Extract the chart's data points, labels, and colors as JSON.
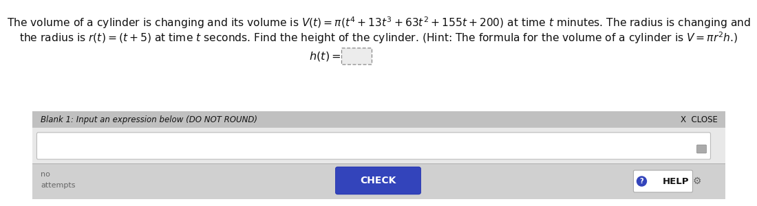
{
  "bg_color": "#f0f0f0",
  "white_color": "#ffffff",
  "gray_bar_color": "#c0c0c0",
  "input_area_color": "#e8e8e8",
  "bottom_bar_color": "#d0d0d0",
  "check_btn_color": "#3344bb",
  "help_btn_color": "#3344bb",
  "line1": "The volume of a cylinder is changing and its volume is $V(t) = \\pi(t^4 + 13t^3 + 63t^2 + 155t + 200)$ at time $t$ minutes. The radius is changing and",
  "line2": "the radius is $r(t) = (t+5)$ at time $t$ seconds. Find the height of the cylinder. (Hint: The formula for the volume of a cylinder is $V = \\pi r^2 h$.)",
  "blank1_label": "Blank 1: Input an expression below (DO NOT ROUND)",
  "close_label": "X  CLOSE",
  "check_label": "CHECK",
  "help_label": "? HELP",
  "attempts_label": "attempts",
  "no_label": "no",
  "text_color": "#111111",
  "gray_text_color": "#666666",
  "white_text_color": "#ffffff",
  "body_fontsize": 11.2,
  "small_fontsize": 8.5,
  "btn_fontsize": 10.0
}
